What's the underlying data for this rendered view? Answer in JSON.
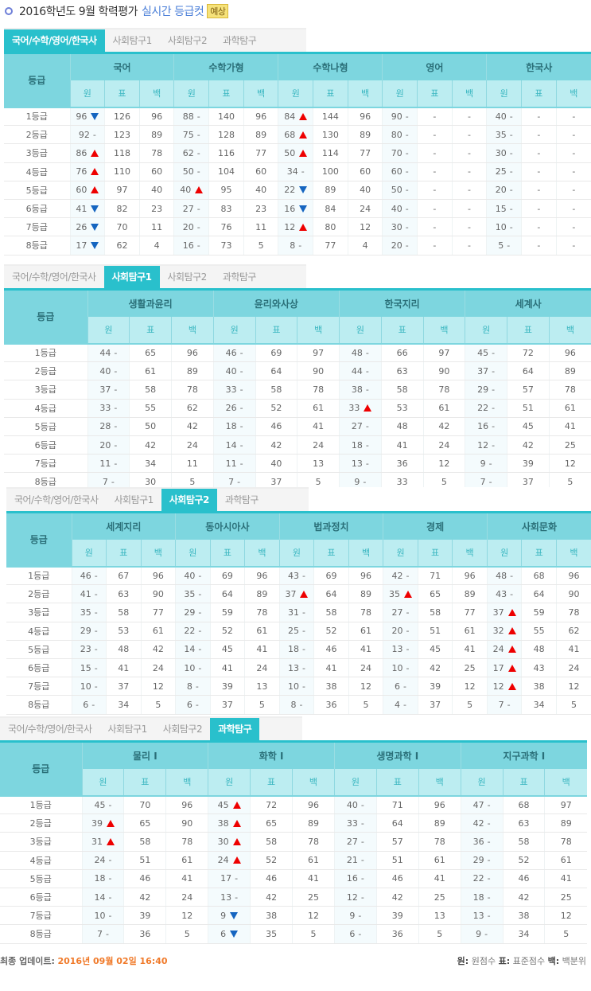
{
  "header": {
    "title": "2016학년도 9월 학력평가",
    "highlight": "실시간 등급컷",
    "badge": "예상"
  },
  "tabs": [
    "국어/수학/영어/한국사",
    "사회탐구1",
    "사회탐구2",
    "과학탐구"
  ],
  "grade_header": "등급",
  "column_labels": [
    "원",
    "표",
    "백"
  ],
  "grades": [
    "1등급",
    "2등급",
    "3등급",
    "4등급",
    "5등급",
    "6등급",
    "7등급",
    "8등급"
  ],
  "colors": {
    "accent": "#29c0cc",
    "up": "#e00000",
    "down": "#1565c0",
    "update": "#f07a2a"
  },
  "sections": [
    {
      "active_tab": 0,
      "subjects": [
        {
          "name": "국어",
          "raw": [
            "96",
            "92",
            "86",
            "76",
            "60",
            "41",
            "26",
            "17"
          ],
          "trend": [
            "down",
            "-",
            "up",
            "up",
            "up",
            "down",
            "down",
            "down"
          ],
          "std": [
            "126",
            "123",
            "118",
            "110",
            "97",
            "82",
            "70",
            "62"
          ],
          "pct": [
            "96",
            "89",
            "78",
            "60",
            "40",
            "23",
            "11",
            "4"
          ]
        },
        {
          "name": "수학가형",
          "raw": [
            "88",
            "75",
            "62",
            "50",
            "40",
            "27",
            "20",
            "16"
          ],
          "trend": [
            "-",
            "-",
            "-",
            "-",
            "up",
            "-",
            "-",
            "-"
          ],
          "std": [
            "140",
            "128",
            "116",
            "104",
            "95",
            "83",
            "76",
            "73"
          ],
          "pct": [
            "96",
            "89",
            "77",
            "60",
            "40",
            "23",
            "11",
            "5"
          ]
        },
        {
          "name": "수학나형",
          "raw": [
            "84",
            "68",
            "50",
            "34",
            "22",
            "16",
            "12",
            "8"
          ],
          "trend": [
            "up",
            "up",
            "up",
            "-",
            "down",
            "down",
            "up",
            "-"
          ],
          "std": [
            "144",
            "130",
            "114",
            "100",
            "89",
            "84",
            "80",
            "77"
          ],
          "pct": [
            "96",
            "89",
            "77",
            "60",
            "40",
            "24",
            "12",
            "4"
          ]
        },
        {
          "name": "영어",
          "raw": [
            "90",
            "80",
            "70",
            "60",
            "50",
            "40",
            "30",
            "20"
          ],
          "trend": [
            "-",
            "-",
            "-",
            "-",
            "-",
            "-",
            "-",
            "-"
          ],
          "std": [
            "-",
            "-",
            "-",
            "-",
            "-",
            "-",
            "-",
            "-"
          ],
          "pct": [
            "-",
            "-",
            "-",
            "-",
            "-",
            "-",
            "-",
            "-"
          ]
        },
        {
          "name": "한국사",
          "raw": [
            "40",
            "35",
            "30",
            "25",
            "20",
            "15",
            "10",
            "5"
          ],
          "trend": [
            "-",
            "-",
            "-",
            "-",
            "-",
            "-",
            "-",
            "-"
          ],
          "std": [
            "-",
            "-",
            "-",
            "-",
            "-",
            "-",
            "-",
            "-"
          ],
          "pct": [
            "-",
            "-",
            "-",
            "-",
            "-",
            "-",
            "-",
            "-"
          ]
        }
      ]
    },
    {
      "active_tab": 1,
      "subjects": [
        {
          "name": "생활과윤리",
          "raw": [
            "44",
            "40",
            "37",
            "33",
            "28",
            "20",
            "11",
            "7"
          ],
          "trend": [
            "-",
            "-",
            "-",
            "-",
            "-",
            "-",
            "-",
            "-"
          ],
          "std": [
            "65",
            "61",
            "58",
            "55",
            "50",
            "42",
            "34",
            "30"
          ],
          "pct": [
            "96",
            "89",
            "78",
            "62",
            "42",
            "24",
            "11",
            "5"
          ]
        },
        {
          "name": "윤리와사상",
          "raw": [
            "46",
            "40",
            "33",
            "26",
            "18",
            "14",
            "11",
            "7"
          ],
          "trend": [
            "-",
            "-",
            "-",
            "-",
            "-",
            "-",
            "-",
            "-"
          ],
          "std": [
            "69",
            "64",
            "58",
            "52",
            "46",
            "42",
            "40",
            "37"
          ],
          "pct": [
            "97",
            "90",
            "78",
            "61",
            "41",
            "24",
            "13",
            "5"
          ]
        },
        {
          "name": "한국지리",
          "raw": [
            "48",
            "44",
            "38",
            "33",
            "27",
            "18",
            "13",
            "9"
          ],
          "trend": [
            "-",
            "-",
            "-",
            "up",
            "-",
            "-",
            "-",
            "-"
          ],
          "std": [
            "66",
            "63",
            "58",
            "53",
            "48",
            "41",
            "36",
            "33"
          ],
          "pct": [
            "97",
            "90",
            "78",
            "61",
            "42",
            "24",
            "12",
            "5"
          ]
        },
        {
          "name": "세계사",
          "raw": [
            "45",
            "37",
            "29",
            "22",
            "16",
            "12",
            "9",
            "7"
          ],
          "trend": [
            "-",
            "-",
            "-",
            "-",
            "-",
            "-",
            "-",
            "-"
          ],
          "std": [
            "72",
            "64",
            "57",
            "51",
            "45",
            "42",
            "39",
            "37"
          ],
          "pct": [
            "96",
            "89",
            "78",
            "61",
            "41",
            "25",
            "12",
            "5"
          ]
        }
      ]
    },
    {
      "active_tab": 2,
      "subjects": [
        {
          "name": "세계지리",
          "raw": [
            "46",
            "41",
            "35",
            "29",
            "23",
            "15",
            "10",
            "6"
          ],
          "trend": [
            "-",
            "-",
            "-",
            "-",
            "-",
            "-",
            "-",
            "-"
          ],
          "std": [
            "67",
            "63",
            "58",
            "53",
            "48",
            "41",
            "37",
            "34"
          ],
          "pct": [
            "96",
            "90",
            "77",
            "61",
            "42",
            "24",
            "12",
            "5"
          ]
        },
        {
          "name": "동아시아사",
          "raw": [
            "40",
            "35",
            "29",
            "22",
            "14",
            "10",
            "8",
            "6"
          ],
          "trend": [
            "-",
            "-",
            "-",
            "-",
            "-",
            "-",
            "-",
            "-"
          ],
          "std": [
            "69",
            "64",
            "59",
            "52",
            "45",
            "41",
            "39",
            "37"
          ],
          "pct": [
            "96",
            "89",
            "78",
            "61",
            "41",
            "24",
            "13",
            "5"
          ]
        },
        {
          "name": "법과정치",
          "raw": [
            "43",
            "37",
            "31",
            "25",
            "18",
            "13",
            "10",
            "8"
          ],
          "trend": [
            "-",
            "up",
            "-",
            "-",
            "-",
            "-",
            "-",
            "-"
          ],
          "std": [
            "69",
            "64",
            "58",
            "52",
            "46",
            "41",
            "38",
            "36"
          ],
          "pct": [
            "96",
            "89",
            "78",
            "61",
            "41",
            "24",
            "12",
            "5"
          ]
        },
        {
          "name": "경제",
          "raw": [
            "42",
            "35",
            "27",
            "20",
            "13",
            "10",
            "6",
            "4"
          ],
          "trend": [
            "-",
            "up",
            "-",
            "-",
            "-",
            "-",
            "-",
            "-"
          ],
          "std": [
            "71",
            "65",
            "58",
            "51",
            "45",
            "42",
            "39",
            "37"
          ],
          "pct": [
            "96",
            "89",
            "77",
            "61",
            "41",
            "25",
            "12",
            "5"
          ]
        },
        {
          "name": "사회문화",
          "raw": [
            "48",
            "43",
            "37",
            "32",
            "24",
            "17",
            "12",
            "7"
          ],
          "trend": [
            "-",
            "-",
            "up",
            "up",
            "up",
            "up",
            "up",
            "-"
          ],
          "std": [
            "68",
            "64",
            "59",
            "55",
            "48",
            "43",
            "38",
            "34"
          ],
          "pct": [
            "96",
            "90",
            "78",
            "62",
            "41",
            "24",
            "12",
            "5"
          ]
        }
      ]
    },
    {
      "active_tab": 3,
      "subjects": [
        {
          "name": "물리 I",
          "raw": [
            "45",
            "39",
            "31",
            "24",
            "18",
            "14",
            "10",
            "7"
          ],
          "trend": [
            "-",
            "up",
            "up",
            "-",
            "-",
            "-",
            "-",
            "-"
          ],
          "std": [
            "70",
            "65",
            "58",
            "51",
            "46",
            "42",
            "39",
            "36"
          ],
          "pct": [
            "96",
            "90",
            "78",
            "61",
            "41",
            "24",
            "12",
            "5"
          ]
        },
        {
          "name": "화학 I",
          "raw": [
            "45",
            "38",
            "30",
            "24",
            "17",
            "13",
            "9",
            "6"
          ],
          "trend": [
            "up",
            "up",
            "up",
            "up",
            "-",
            "-",
            "down",
            "down"
          ],
          "std": [
            "72",
            "65",
            "58",
            "52",
            "46",
            "42",
            "38",
            "35"
          ],
          "pct": [
            "96",
            "89",
            "78",
            "61",
            "41",
            "25",
            "12",
            "5"
          ]
        },
        {
          "name": "생명과학 I",
          "raw": [
            "40",
            "33",
            "27",
            "21",
            "16",
            "12",
            "9",
            "6"
          ],
          "trend": [
            "-",
            "-",
            "-",
            "-",
            "-",
            "-",
            "-",
            "-"
          ],
          "std": [
            "71",
            "64",
            "57",
            "51",
            "46",
            "42",
            "39",
            "36"
          ],
          "pct": [
            "96",
            "89",
            "78",
            "61",
            "41",
            "25",
            "13",
            "5"
          ]
        },
        {
          "name": "지구과학 I",
          "raw": [
            "47",
            "42",
            "36",
            "29",
            "22",
            "18",
            "13",
            "9"
          ],
          "trend": [
            "-",
            "-",
            "-",
            "-",
            "-",
            "-",
            "-",
            "-"
          ],
          "std": [
            "68",
            "63",
            "58",
            "52",
            "46",
            "42",
            "38",
            "34"
          ],
          "pct": [
            "97",
            "89",
            "78",
            "61",
            "41",
            "25",
            "12",
            "5"
          ]
        }
      ]
    }
  ],
  "footer": {
    "update_label": "최종 업데이트:",
    "update_time": "2016년 09월 02일 16:40",
    "legend": [
      {
        "key": "원:",
        "value": "원점수"
      },
      {
        "key": "표:",
        "value": "표준점수"
      },
      {
        "key": "백:",
        "value": "백분위"
      }
    ]
  }
}
